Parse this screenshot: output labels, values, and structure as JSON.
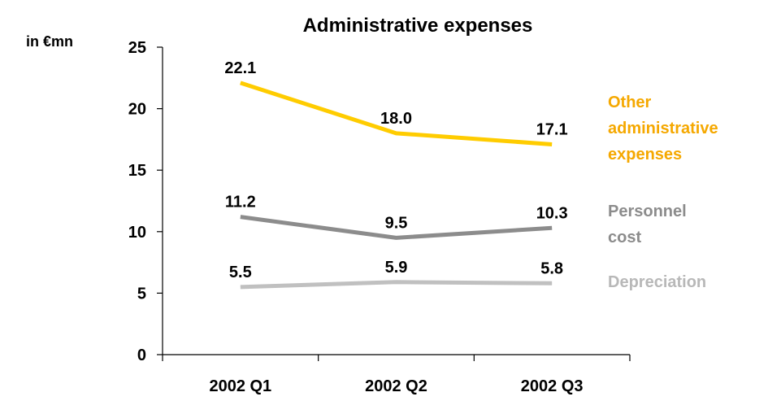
{
  "chart_data": {
    "type": "line",
    "title": "Administrative expenses",
    "ylabel": "in €mn",
    "xlabel": "",
    "categories": [
      "2002 Q1",
      "2002 Q2",
      "2002 Q3"
    ],
    "ylim": [
      0,
      25
    ],
    "yticks": [
      "0",
      "5",
      "10",
      "15",
      "20",
      "25"
    ],
    "grid": false,
    "legend": "right",
    "series": [
      {
        "name": "Other administrative expenses",
        "name_lines": [
          "Other",
          "administrative",
          "expenses"
        ],
        "values": [
          22.1,
          18.0,
          17.1
        ],
        "labels": [
          "22.1",
          "18.0",
          "17.1"
        ],
        "color": "#FFCC00",
        "label_color": "#F5A800"
      },
      {
        "name": "Personnel cost",
        "name_lines": [
          "Personnel",
          "cost"
        ],
        "values": [
          11.2,
          9.5,
          10.3
        ],
        "labels": [
          "11.2",
          "9.5",
          "10.3"
        ],
        "color": "#8C8C8C",
        "label_color": "#8C8C8C"
      },
      {
        "name": "Depreciation",
        "name_lines": [
          "Depreciation"
        ],
        "values": [
          5.5,
          5.9,
          5.8
        ],
        "labels": [
          "5.5",
          "5.9",
          "5.8"
        ],
        "color": "#C0C0C0",
        "label_color": "#B8B8B8"
      }
    ]
  }
}
